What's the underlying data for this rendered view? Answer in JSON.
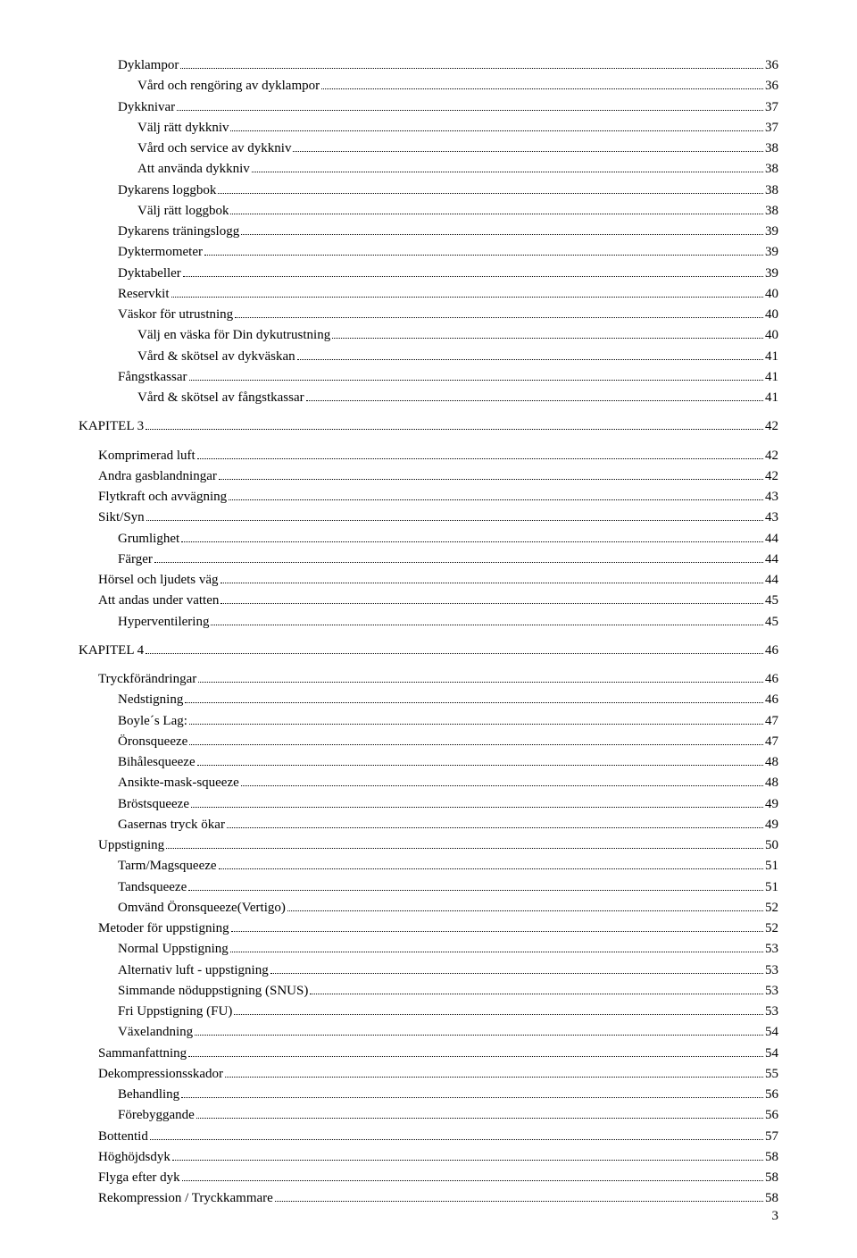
{
  "pageNumber": "3",
  "entries": [
    {
      "level": 2,
      "label": "Dyklampor",
      "page": "36"
    },
    {
      "level": 3,
      "label": "Vård och rengöring av dyklampor",
      "page": "36"
    },
    {
      "level": 2,
      "label": "Dykknivar",
      "page": "37"
    },
    {
      "level": 3,
      "label": "Välj rätt dykkniv",
      "page": "37"
    },
    {
      "level": 3,
      "label": "Vård och service av dykkniv",
      "page": "38"
    },
    {
      "level": 3,
      "label": "Att använda dykkniv",
      "page": "38"
    },
    {
      "level": 2,
      "label": "Dykarens loggbok",
      "page": "38"
    },
    {
      "level": 3,
      "label": "Välj rätt loggbok",
      "page": "38"
    },
    {
      "level": 2,
      "label": "Dykarens träningslogg",
      "page": "39"
    },
    {
      "level": 2,
      "label": "Dyktermometer",
      "page": "39"
    },
    {
      "level": 2,
      "label": "Dyktabeller",
      "page": "39"
    },
    {
      "level": 2,
      "label": "Reservkit",
      "page": "40"
    },
    {
      "level": 2,
      "label": "Väskor för utrustning",
      "page": "40"
    },
    {
      "level": 3,
      "label": "Välj en väska för Din dykutrustning",
      "page": "40"
    },
    {
      "level": 3,
      "label": "Vård & skötsel av dykväskan",
      "page": "41"
    },
    {
      "level": 2,
      "label": "Fångstkassar",
      "page": "41"
    },
    {
      "level": 3,
      "label": "Vård & skötsel av fångstkassar",
      "page": "41"
    },
    {
      "level": 0,
      "label": "KAPITEL 3",
      "page": "42"
    },
    {
      "level": 1,
      "label": "Komprimerad luft",
      "page": "42"
    },
    {
      "level": 1,
      "label": "Andra gasblandningar",
      "page": "42"
    },
    {
      "level": 1,
      "label": "Flytkraft och avvägning",
      "page": "43"
    },
    {
      "level": 1,
      "label": "Sikt/Syn",
      "page": "43"
    },
    {
      "level": 2,
      "label": "Grumlighet",
      "page": "44"
    },
    {
      "level": 2,
      "label": "Färger",
      "page": "44"
    },
    {
      "level": 1,
      "label": "Hörsel och ljudets väg",
      "page": "44"
    },
    {
      "level": 1,
      "label": "Att andas under vatten",
      "page": "45"
    },
    {
      "level": 2,
      "label": "Hyperventilering",
      "page": "45"
    },
    {
      "level": 0,
      "label": "KAPITEL 4",
      "page": "46"
    },
    {
      "level": 1,
      "label": "Tryckförändringar",
      "page": "46"
    },
    {
      "level": 2,
      "label": "Nedstigning",
      "page": "46"
    },
    {
      "level": 2,
      "label": "Boyle´s Lag:",
      "page": "47"
    },
    {
      "level": 2,
      "label": "Öronsqueeze",
      "page": "47"
    },
    {
      "level": 2,
      "label": "Bihålesqueeze",
      "page": "48"
    },
    {
      "level": 2,
      "label": "Ansikte-mask-squeeze",
      "page": "48"
    },
    {
      "level": 2,
      "label": "Bröstsqueeze",
      "page": "49"
    },
    {
      "level": 2,
      "label": "Gasernas tryck ökar",
      "page": "49"
    },
    {
      "level": 1,
      "label": "Uppstigning",
      "page": "50"
    },
    {
      "level": 2,
      "label": "Tarm/Magsqueeze",
      "page": "51"
    },
    {
      "level": 2,
      "label": "Tandsqueeze",
      "page": "51"
    },
    {
      "level": 2,
      "label": "Omvänd Öronsqueeze(Vertigo)",
      "page": "52"
    },
    {
      "level": 1,
      "label": "Metoder för uppstigning",
      "page": "52"
    },
    {
      "level": 2,
      "label": "Normal Uppstigning",
      "page": "53"
    },
    {
      "level": 2,
      "label": "Alternativ luft - uppstigning",
      "page": "53"
    },
    {
      "level": 2,
      "label": "Simmande nöduppstigning (SNUS)",
      "page": "53"
    },
    {
      "level": 2,
      "label": "Fri Uppstigning (FU)",
      "page": "53"
    },
    {
      "level": 2,
      "label": "Växelandning",
      "page": "54"
    },
    {
      "level": 1,
      "label": "Sammanfattning",
      "page": "54"
    },
    {
      "level": 1,
      "label": "Dekompressionsskador",
      "page": "55"
    },
    {
      "level": 2,
      "label": "Behandling",
      "page": "56"
    },
    {
      "level": 2,
      "label": "Förebyggande",
      "page": "56"
    },
    {
      "level": 1,
      "label": "Bottentid",
      "page": "57"
    },
    {
      "level": 1,
      "label": "Höghöjdsdyk",
      "page": "58"
    },
    {
      "level": 1,
      "label": "Flyga efter dyk",
      "page": "58"
    },
    {
      "level": 1,
      "label": "Rekompression / Tryckkammare",
      "page": "58"
    }
  ],
  "gapBefore": [
    "KAPITEL 3",
    "KAPITEL 4",
    "Komprimerad luft",
    "Tryckförändringar"
  ]
}
